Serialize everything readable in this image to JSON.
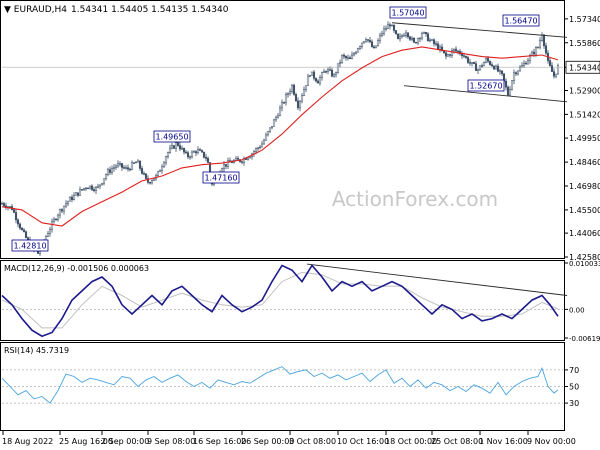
{
  "header": {
    "symbol": "EURAUD,H4",
    "ohlc": "1.54341 1.54405 1.54135 1.54340"
  },
  "watermark": "ActionForex.com",
  "colors": {
    "candles": "#3d4f66",
    "ma": "#e0201e",
    "channel": "#2b2b2b",
    "macd_line": "#1a1a8c",
    "macd_signal": "#c0c0c0",
    "rsi": "#4aa3df",
    "label_box": "#00008b",
    "price_box_border": "#000000"
  },
  "chart_data": [
    {
      "type": "candlestick",
      "name": "price",
      "title": "EURAUD,H4",
      "ylim": [
        1.4258,
        1.5789
      ],
      "y_ticks": [
        "1.57340",
        "1.55860",
        "1.54340",
        "1.52900",
        "1.51420",
        "1.49950",
        "1.48460",
        "1.46980",
        "1.45500",
        "1.44060",
        "1.42580"
      ],
      "current_price_label": "1.54340",
      "x_ticks": [
        "18 Aug 2022",
        "25 Aug 16:00",
        "2 Sep 00:00",
        "9 Sep 08:00",
        "16 Sep 16:00",
        "26 Sep 00:00",
        "3 Oct 08:00",
        "10 Oct 16:00",
        "18 Oct 00:00",
        "25 Oct 08:00",
        "1 Nov 16:00",
        "9 Nov 00:00"
      ],
      "price_labels": [
        {
          "text": "1.42810",
          "value": 1.4281
        },
        {
          "text": "1.49650",
          "value": 1.4965
        },
        {
          "text": "1.47160",
          "value": 1.4716
        },
        {
          "text": "1.57040",
          "value": 1.5704
        },
        {
          "text": "1.56470",
          "value": 1.5647
        },
        {
          "text": "1.52670",
          "value": 1.5267
        }
      ],
      "close_path": [
        [
          0,
          1.459
        ],
        [
          10,
          1.456
        ],
        [
          20,
          1.442
        ],
        [
          30,
          1.431
        ],
        [
          36,
          1.4281
        ],
        [
          45,
          1.44
        ],
        [
          55,
          1.452
        ],
        [
          65,
          1.46
        ],
        [
          75,
          1.465
        ],
        [
          85,
          1.47
        ],
        [
          95,
          1.468
        ],
        [
          105,
          1.478
        ],
        [
          115,
          1.483
        ],
        [
          125,
          1.48
        ],
        [
          135,
          1.485
        ],
        [
          145,
          1.472
        ],
        [
          155,
          1.476
        ],
        [
          165,
          1.49
        ],
        [
          175,
          1.4965
        ],
        [
          185,
          1.488
        ],
        [
          195,
          1.492
        ],
        [
          205,
          1.487
        ],
        [
          210,
          1.4716
        ],
        [
          220,
          1.482
        ],
        [
          230,
          1.485
        ],
        [
          240,
          1.486
        ],
        [
          250,
          1.49
        ],
        [
          260,
          1.496
        ],
        [
          268,
          1.505
        ],
        [
          276,
          1.515
        ],
        [
          284,
          1.525
        ],
        [
          290,
          1.532
        ],
        [
          296,
          1.52
        ],
        [
          302,
          1.53
        ],
        [
          308,
          1.54
        ],
        [
          316,
          1.535
        ],
        [
          324,
          1.542
        ],
        [
          332,
          1.538
        ],
        [
          340,
          1.55
        ],
        [
          348,
          1.548
        ],
        [
          356,
          1.556
        ],
        [
          364,
          1.562
        ],
        [
          372,
          1.554
        ],
        [
          380,
          1.565
        ],
        [
          388,
          1.5704
        ],
        [
          396,
          1.56
        ],
        [
          404,
          1.566
        ],
        [
          412,
          1.558
        ],
        [
          420,
          1.565
        ],
        [
          428,
          1.56
        ],
        [
          436,
          1.556
        ],
        [
          444,
          1.55
        ],
        [
          452,
          1.554
        ],
        [
          460,
          1.552
        ],
        [
          468,
          1.546
        ],
        [
          476,
          1.542
        ],
        [
          484,
          1.548
        ],
        [
          492,
          1.544
        ],
        [
          500,
          1.538
        ],
        [
          506,
          1.5267
        ],
        [
          512,
          1.54
        ],
        [
          520,
          1.544
        ],
        [
          528,
          1.55
        ],
        [
          536,
          1.556
        ],
        [
          540,
          1.5647
        ],
        [
          546,
          1.546
        ],
        [
          552,
          1.538
        ],
        [
          556,
          1.5434
        ]
      ],
      "ma_path": [
        [
          0,
          1.457
        ],
        [
          20,
          1.455
        ],
        [
          40,
          1.447
        ],
        [
          60,
          1.445
        ],
        [
          80,
          1.454
        ],
        [
          100,
          1.46
        ],
        [
          120,
          1.466
        ],
        [
          140,
          1.473
        ],
        [
          160,
          1.476
        ],
        [
          180,
          1.481
        ],
        [
          200,
          1.483
        ],
        [
          220,
          1.484
        ],
        [
          240,
          1.486
        ],
        [
          260,
          1.492
        ],
        [
          280,
          1.502
        ],
        [
          300,
          1.514
        ],
        [
          320,
          1.525
        ],
        [
          340,
          1.535
        ],
        [
          360,
          1.543
        ],
        [
          380,
          1.55
        ],
        [
          400,
          1.554
        ],
        [
          420,
          1.556
        ],
        [
          440,
          1.554
        ],
        [
          460,
          1.552
        ],
        [
          480,
          1.55
        ],
        [
          500,
          1.549
        ],
        [
          520,
          1.55
        ],
        [
          540,
          1.551
        ],
        [
          556,
          1.548
        ]
      ],
      "channel_upper": [
        [
          390,
          1.571
        ],
        [
          565,
          1.562
        ]
      ],
      "channel_lower": [
        [
          402,
          1.532
        ],
        [
          565,
          1.522
        ]
      ]
    },
    {
      "type": "line",
      "name": "macd",
      "title": "MACD(12,26,9) -0.001506 0.000063",
      "ylim": [
        -0.006193,
        0.010033
      ],
      "y_ticks": [
        "0.010033",
        "0.00",
        "-0.006193"
      ],
      "macd_path": [
        [
          0,
          0.003
        ],
        [
          10,
          0.001
        ],
        [
          20,
          -0.002
        ],
        [
          30,
          -0.0045
        ],
        [
          40,
          -0.0058
        ],
        [
          50,
          -0.005
        ],
        [
          60,
          -0.002
        ],
        [
          70,
          0.002
        ],
        [
          80,
          0.004
        ],
        [
          90,
          0.006
        ],
        [
          100,
          0.007
        ],
        [
          110,
          0.005
        ],
        [
          120,
          0.001
        ],
        [
          130,
          -0.001
        ],
        [
          140,
          0.001
        ],
        [
          150,
          0.003
        ],
        [
          160,
          0.001
        ],
        [
          170,
          0.004
        ],
        [
          180,
          0.005
        ],
        [
          190,
          0.003
        ],
        [
          200,
          0.001
        ],
        [
          210,
          -0.0005
        ],
        [
          220,
          0.003
        ],
        [
          230,
          0.001
        ],
        [
          240,
          -0.0005
        ],
        [
          250,
          0.0005
        ],
        [
          260,
          0.002
        ],
        [
          270,
          0.006
        ],
        [
          280,
          0.0095
        ],
        [
          290,
          0.0085
        ],
        [
          300,
          0.006
        ],
        [
          310,
          0.0095
        ],
        [
          320,
          0.007
        ],
        [
          330,
          0.004
        ],
        [
          340,
          0.006
        ],
        [
          350,
          0.005
        ],
        [
          360,
          0.006
        ],
        [
          370,
          0.004
        ],
        [
          380,
          0.005
        ],
        [
          390,
          0.006
        ],
        [
          400,
          0.005
        ],
        [
          410,
          0.003
        ],
        [
          420,
          0.001
        ],
        [
          430,
          -0.001
        ],
        [
          440,
          0.001
        ],
        [
          450,
          0.0
        ],
        [
          460,
          -0.002
        ],
        [
          470,
          -0.001
        ],
        [
          480,
          -0.0025
        ],
        [
          490,
          -0.002
        ],
        [
          500,
          -0.001
        ],
        [
          510,
          -0.002
        ],
        [
          520,
          0.0
        ],
        [
          530,
          0.002
        ],
        [
          540,
          0.003
        ],
        [
          548,
          0.001
        ],
        [
          556,
          -0.0015
        ]
      ],
      "signal_path": [
        [
          0,
          0.002
        ],
        [
          20,
          0.0
        ],
        [
          40,
          -0.004
        ],
        [
          60,
          -0.004
        ],
        [
          80,
          0.001
        ],
        [
          100,
          0.005
        ],
        [
          120,
          0.003
        ],
        [
          140,
          0.0005
        ],
        [
          160,
          0.002
        ],
        [
          180,
          0.0035
        ],
        [
          200,
          0.002
        ],
        [
          220,
          0.001
        ],
        [
          240,
          0.0005
        ],
        [
          260,
          0.001
        ],
        [
          280,
          0.006
        ],
        [
          300,
          0.008
        ],
        [
          320,
          0.0075
        ],
        [
          340,
          0.0055
        ],
        [
          360,
          0.0055
        ],
        [
          380,
          0.005
        ],
        [
          400,
          0.005
        ],
        [
          420,
          0.0025
        ],
        [
          440,
          0.0005
        ],
        [
          460,
          -0.0005
        ],
        [
          480,
          -0.0015
        ],
        [
          500,
          -0.0015
        ],
        [
          520,
          -0.001
        ],
        [
          540,
          0.0015
        ],
        [
          556,
          0.0001
        ]
      ],
      "trend_line": [
        [
          305,
          0.0098
        ],
        [
          565,
          0.003
        ]
      ]
    },
    {
      "type": "line",
      "name": "rsi",
      "title": "RSI(14) 45.7319",
      "ylim": [
        0,
        100
      ],
      "y_ticks": [
        "70",
        "50",
        "30"
      ],
      "levels": [
        70,
        50,
        30
      ],
      "rsi_path": [
        [
          0,
          60
        ],
        [
          8,
          50
        ],
        [
          16,
          40
        ],
        [
          24,
          45
        ],
        [
          32,
          35
        ],
        [
          40,
          38
        ],
        [
          48,
          30
        ],
        [
          56,
          45
        ],
        [
          64,
          65
        ],
        [
          72,
          62
        ],
        [
          80,
          55
        ],
        [
          88,
          60
        ],
        [
          96,
          58
        ],
        [
          104,
          55
        ],
        [
          112,
          52
        ],
        [
          120,
          62
        ],
        [
          128,
          60
        ],
        [
          136,
          50
        ],
        [
          144,
          58
        ],
        [
          152,
          62
        ],
        [
          160,
          55
        ],
        [
          168,
          60
        ],
        [
          176,
          64
        ],
        [
          184,
          56
        ],
        [
          192,
          50
        ],
        [
          200,
          55
        ],
        [
          208,
          48
        ],
        [
          216,
          58
        ],
        [
          224,
          55
        ],
        [
          232,
          52
        ],
        [
          240,
          56
        ],
        [
          248,
          54
        ],
        [
          256,
          60
        ],
        [
          264,
          66
        ],
        [
          272,
          70
        ],
        [
          280,
          74
        ],
        [
          288,
          65
        ],
        [
          296,
          68
        ],
        [
          304,
          70
        ],
        [
          312,
          62
        ],
        [
          320,
          66
        ],
        [
          328,
          60
        ],
        [
          336,
          64
        ],
        [
          344,
          58
        ],
        [
          352,
          62
        ],
        [
          360,
          66
        ],
        [
          368,
          56
        ],
        [
          376,
          64
        ],
        [
          384,
          70
        ],
        [
          392,
          54
        ],
        [
          400,
          60
        ],
        [
          408,
          50
        ],
        [
          416,
          58
        ],
        [
          424,
          48
        ],
        [
          432,
          55
        ],
        [
          440,
          52
        ],
        [
          448,
          45
        ],
        [
          456,
          50
        ],
        [
          464,
          44
        ],
        [
          472,
          52
        ],
        [
          480,
          48
        ],
        [
          488,
          42
        ],
        [
          496,
          55
        ],
        [
          504,
          40
        ],
        [
          512,
          50
        ],
        [
          520,
          56
        ],
        [
          528,
          60
        ],
        [
          536,
          62
        ],
        [
          540,
          72
        ],
        [
          546,
          50
        ],
        [
          552,
          42
        ],
        [
          556,
          46
        ]
      ]
    }
  ]
}
